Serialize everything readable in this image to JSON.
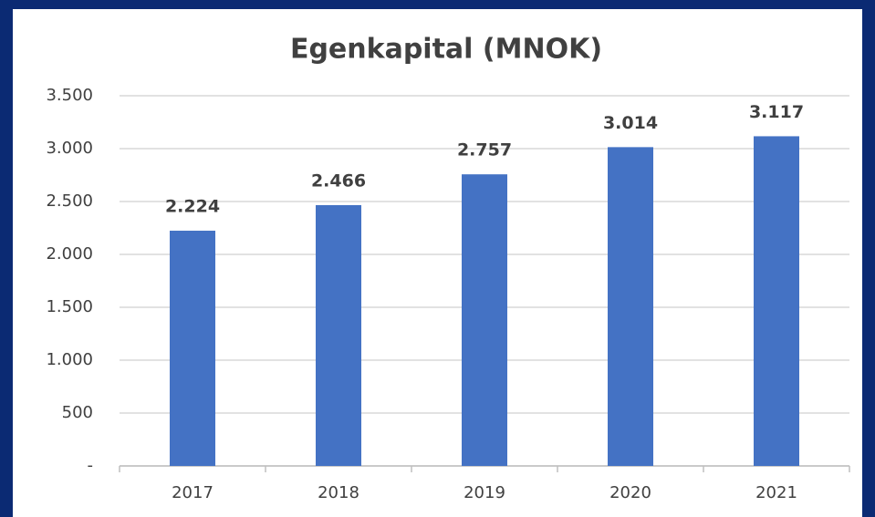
{
  "chart_data": {
    "type": "bar",
    "title": "Egenkapital (MNOK)",
    "categories": [
      "2017",
      "2018",
      "2019",
      "2020",
      "2021"
    ],
    "values": [
      2224,
      2466,
      2757,
      3014,
      3117
    ],
    "value_labels": [
      "2.224",
      "2.466",
      "2.757",
      "3.014",
      "3.117"
    ],
    "color": "#4472c4",
    "ylim": [
      0,
      3500
    ],
    "yticks": [
      {
        "value": 0,
        "label": "-"
      },
      500,
      {
        "value": 1000,
        "label": "1.000"
      },
      {
        "value": 1500,
        "label": "1.500"
      },
      {
        "value": 2000,
        "label": "2.000"
      },
      {
        "value": 2500,
        "label": "2.500"
      },
      {
        "value": 3000,
        "label": "3.000"
      },
      {
        "value": 3500,
        "label": "3.500"
      }
    ],
    "grid": true
  }
}
